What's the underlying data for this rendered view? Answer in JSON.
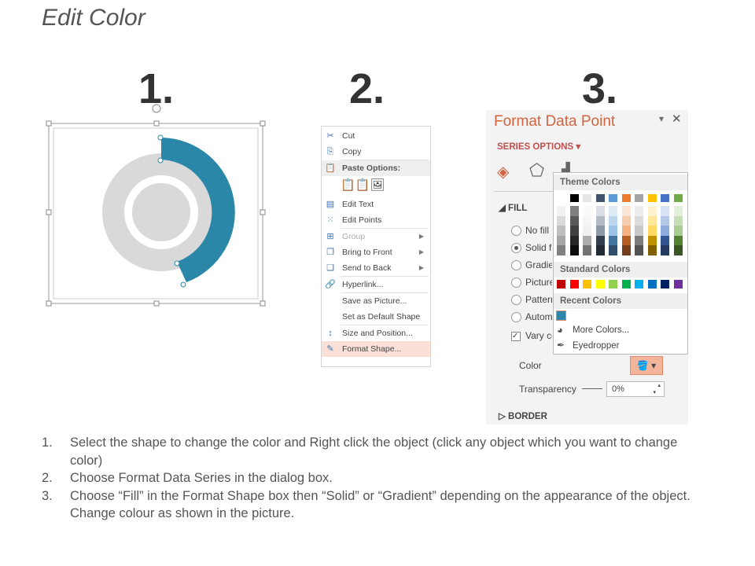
{
  "title": "Edit Color",
  "steps": [
    "1.",
    "2.",
    "3."
  ],
  "menu": {
    "items": [
      {
        "icon": "scissors-icon",
        "glyph": "✂",
        "label": "Cut"
      },
      {
        "icon": "copy-icon",
        "glyph": "⎘",
        "label": "Copy"
      },
      {
        "icon": "paste-icon",
        "glyph": "📋",
        "label": "Paste Options:",
        "header": true
      },
      {
        "icon": "edit-text-icon",
        "glyph": "▤",
        "label": "Edit Text"
      },
      {
        "icon": "edit-points-icon",
        "glyph": "⁙",
        "label": "Edit Points"
      },
      {
        "icon": "group-icon",
        "glyph": "⊞",
        "label": "Group",
        "disabled": true,
        "submenu": true
      },
      {
        "icon": "bring-front-icon",
        "glyph": "❐",
        "label": "Bring to Front",
        "submenu": true
      },
      {
        "icon": "send-back-icon",
        "glyph": "❏",
        "label": "Send to Back",
        "submenu": true
      },
      {
        "icon": "hyperlink-icon",
        "glyph": "🔗",
        "label": "Hyperlink..."
      },
      {
        "icon": "",
        "glyph": "",
        "label": "Save as Picture..."
      },
      {
        "icon": "",
        "glyph": "",
        "label": "Set as Default Shape"
      },
      {
        "icon": "size-position-icon",
        "glyph": "↕",
        "label": "Size and Position..."
      },
      {
        "icon": "format-shape-icon",
        "glyph": "✎",
        "label": "Format Shape...",
        "highlight": true
      }
    ]
  },
  "panel": {
    "title": "Format Data Point",
    "series_options": "SERIES OPTIONS",
    "fill_section": "FILL",
    "fill_options": [
      "No fill",
      "Solid fill",
      "Gradient fill",
      "Picture or texture fill",
      "Pattern fill",
      "Automatic"
    ],
    "selected_fill": "Solid fill",
    "vary_colors": "Vary colors by point",
    "color_label": "Color",
    "transparency_label": "Transparency",
    "transparency_value": "0%",
    "border_section": "BORDER"
  },
  "popup": {
    "theme_header": "Theme Colors",
    "standard_header": "Standard Colors",
    "recent_header": "Recent Colors",
    "more_colors": "More Colors...",
    "eyedropper": "Eyedropper",
    "theme_colors": [
      "#ffffff",
      "#000000",
      "#e7e6e6",
      "#44546a",
      "#5b9bd5",
      "#ed7d31",
      "#a5a5a5",
      "#ffc000",
      "#4472c4",
      "#70ad47"
    ],
    "standard_colors": [
      "#c00000",
      "#ff0000",
      "#ffc000",
      "#ffff00",
      "#92d050",
      "#00b050",
      "#00b0f0",
      "#0070c0",
      "#002060",
      "#7030a0"
    ],
    "recent_colors": [
      "#2e86ab"
    ]
  },
  "donut": {
    "accent": "#2a87a8",
    "base": "#d9d9d9"
  },
  "instructions": [
    {
      "n": "1.",
      "text": "Select the shape to change the color and Right click the object (click any object which you want to change color)"
    },
    {
      "n": "2.",
      "text": "Choose Format Data Series in the dialog box."
    },
    {
      "n": "3.",
      "text": "Choose “Fill” in the Format Shape box then “Solid” or “Gradient” depending on the appearance of the object. Change colour as shown in the picture."
    }
  ]
}
